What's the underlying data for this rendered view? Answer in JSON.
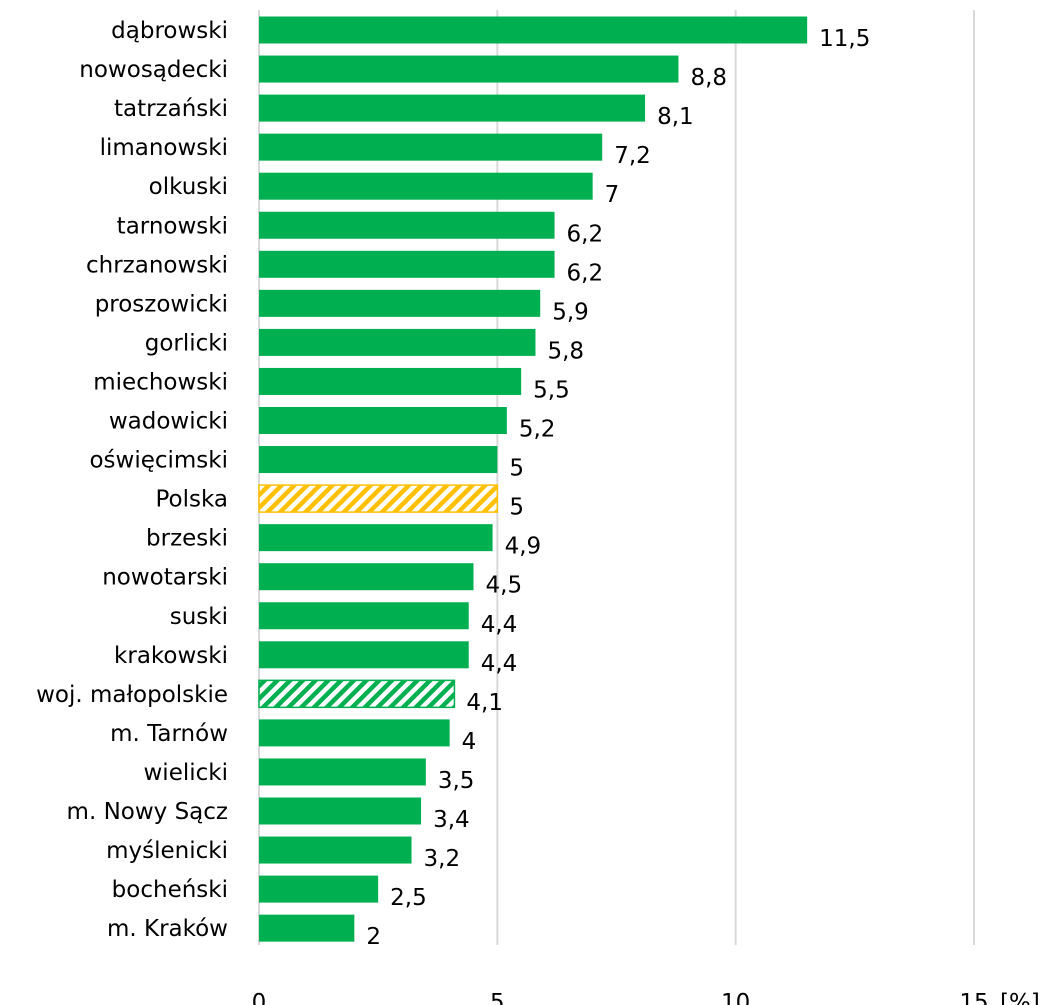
{
  "chart_data": {
    "type": "bar",
    "orientation": "horizontal",
    "categories": [
      "dąbrowski",
      "nowosądecki",
      "tatrzański",
      "limanowski",
      "olkuski",
      "tarnowski",
      "chrzanowski",
      "proszowicki",
      "gorlicki",
      "miechowski",
      "wadowicki",
      "oświęcimski",
      "Polska",
      "brzeski",
      "nowotarski",
      "suski",
      "krakowski",
      "woj. małopolskie",
      "m. Tarnów",
      "wielicki",
      "m. Nowy Sącz",
      "myślenicki",
      "bocheński",
      "m. Kraków"
    ],
    "values": [
      11.5,
      8.8,
      8.1,
      7.2,
      7,
      6.2,
      6.2,
      5.9,
      5.8,
      5.5,
      5.2,
      5,
      5,
      4.9,
      4.5,
      4.4,
      4.4,
      4.1,
      4,
      3.5,
      3.4,
      3.2,
      2.5,
      2
    ],
    "value_labels": [
      "11,5",
      "8,8",
      "8,1",
      "7,2",
      "7",
      "6,2",
      "6,2",
      "5,9",
      "5,8",
      "5,5",
      "5,2",
      "5",
      "5",
      "4,9",
      "4,5",
      "4,4",
      "4,4",
      "4,1",
      "4",
      "3,5",
      "3,4",
      "3,2",
      "2,5",
      "2"
    ],
    "highlights": {
      "Polska": "hatched-yellow",
      "woj. małopolskie": "hatched-green"
    },
    "xlim": [
      0,
      15
    ],
    "xticks": [
      0,
      5,
      10,
      15
    ],
    "xtick_labels": [
      "0",
      "5",
      "10",
      "15"
    ],
    "unit_label": "[%]",
    "grid": "vertical",
    "colors": {
      "bar": "#00b050",
      "polska_hatch": "#ffc000",
      "woj_hatch": "#00b050",
      "grid": "#d9d9d9"
    }
  }
}
